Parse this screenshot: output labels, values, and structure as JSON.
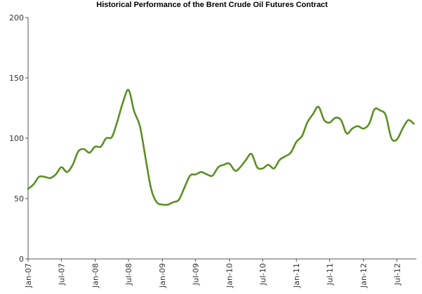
{
  "chart_data": {
    "type": "line",
    "title": "Historical Performance of the Brent Crude Oil Futures Contract",
    "xlabel": "",
    "ylabel": "",
    "ylim": [
      0,
      200
    ],
    "yticks": [
      0,
      50,
      100,
      150,
      200
    ],
    "xlim": [
      "2007-01-01",
      "2012-10-15"
    ],
    "xticks": [
      {
        "date": "2007-01-01",
        "label": "Jan-07"
      },
      {
        "date": "2007-07-01",
        "label": "Jul-07"
      },
      {
        "date": "2008-01-01",
        "label": "Jan-08"
      },
      {
        "date": "2008-07-01",
        "label": "Jul-08"
      },
      {
        "date": "2009-01-01",
        "label": "Jan-09"
      },
      {
        "date": "2009-07-01",
        "label": "Jul-09"
      },
      {
        "date": "2010-01-01",
        "label": "Jan-10"
      },
      {
        "date": "2010-07-01",
        "label": "Jul-10"
      },
      {
        "date": "2011-01-01",
        "label": "Jan-11"
      },
      {
        "date": "2011-07-01",
        "label": "Jul-11"
      },
      {
        "date": "2012-01-01",
        "label": "Jan-12"
      },
      {
        "date": "2012-07-01",
        "label": "Jul-12"
      }
    ],
    "grid": false,
    "series": [
      {
        "color": "#5b8f22",
        "points": [
          [
            "2007-01-01",
            58
          ],
          [
            "2007-02-01",
            62
          ],
          [
            "2007-03-01",
            68
          ],
          [
            "2007-04-01",
            68
          ],
          [
            "2007-05-01",
            67
          ],
          [
            "2007-06-01",
            70
          ],
          [
            "2007-07-01",
            76
          ],
          [
            "2007-08-01",
            72
          ],
          [
            "2007-09-01",
            78
          ],
          [
            "2007-10-01",
            89
          ],
          [
            "2007-11-01",
            91
          ],
          [
            "2007-12-01",
            88
          ],
          [
            "2008-01-01",
            93
          ],
          [
            "2008-02-01",
            93
          ],
          [
            "2008-03-01",
            100
          ],
          [
            "2008-04-01",
            101
          ],
          [
            "2008-05-01",
            114
          ],
          [
            "2008-06-01",
            130
          ],
          [
            "2008-07-01",
            140
          ],
          [
            "2008-08-01",
            122
          ],
          [
            "2008-09-01",
            110
          ],
          [
            "2008-10-01",
            84
          ],
          [
            "2008-11-01",
            58
          ],
          [
            "2008-12-01",
            47
          ],
          [
            "2009-01-01",
            45
          ],
          [
            "2009-02-01",
            45
          ],
          [
            "2009-03-01",
            47
          ],
          [
            "2009-04-01",
            49
          ],
          [
            "2009-05-01",
            59
          ],
          [
            "2009-06-01",
            69
          ],
          [
            "2009-07-01",
            70
          ],
          [
            "2009-08-01",
            72
          ],
          [
            "2009-09-01",
            70
          ],
          [
            "2009-10-01",
            69
          ],
          [
            "2009-11-01",
            76
          ],
          [
            "2009-12-01",
            78
          ],
          [
            "2010-01-01",
            79
          ],
          [
            "2010-02-01",
            73
          ],
          [
            "2010-03-01",
            76
          ],
          [
            "2010-04-01",
            82
          ],
          [
            "2010-05-01",
            87
          ],
          [
            "2010-06-01",
            76
          ],
          [
            "2010-07-01",
            75
          ],
          [
            "2010-08-01",
            78
          ],
          [
            "2010-09-01",
            75
          ],
          [
            "2010-10-01",
            82
          ],
          [
            "2010-11-01",
            85
          ],
          [
            "2010-12-01",
            88
          ],
          [
            "2011-01-01",
            97
          ],
          [
            "2011-02-01",
            102
          ],
          [
            "2011-03-01",
            113
          ],
          [
            "2011-04-01",
            120
          ],
          [
            "2011-05-01",
            126
          ],
          [
            "2011-06-01",
            115
          ],
          [
            "2011-07-01",
            113
          ],
          [
            "2011-08-01",
            117
          ],
          [
            "2011-09-01",
            115
          ],
          [
            "2011-10-01",
            104
          ],
          [
            "2011-11-01",
            108
          ],
          [
            "2011-12-01",
            110
          ],
          [
            "2012-01-01",
            108
          ],
          [
            "2012-02-01",
            112
          ],
          [
            "2012-03-01",
            124
          ],
          [
            "2012-04-01",
            123
          ],
          [
            "2012-05-01",
            119
          ],
          [
            "2012-06-01",
            100
          ],
          [
            "2012-07-01",
            99
          ],
          [
            "2012-08-01",
            108
          ],
          [
            "2012-09-01",
            115
          ],
          [
            "2012-10-01",
            112
          ]
        ]
      }
    ]
  }
}
